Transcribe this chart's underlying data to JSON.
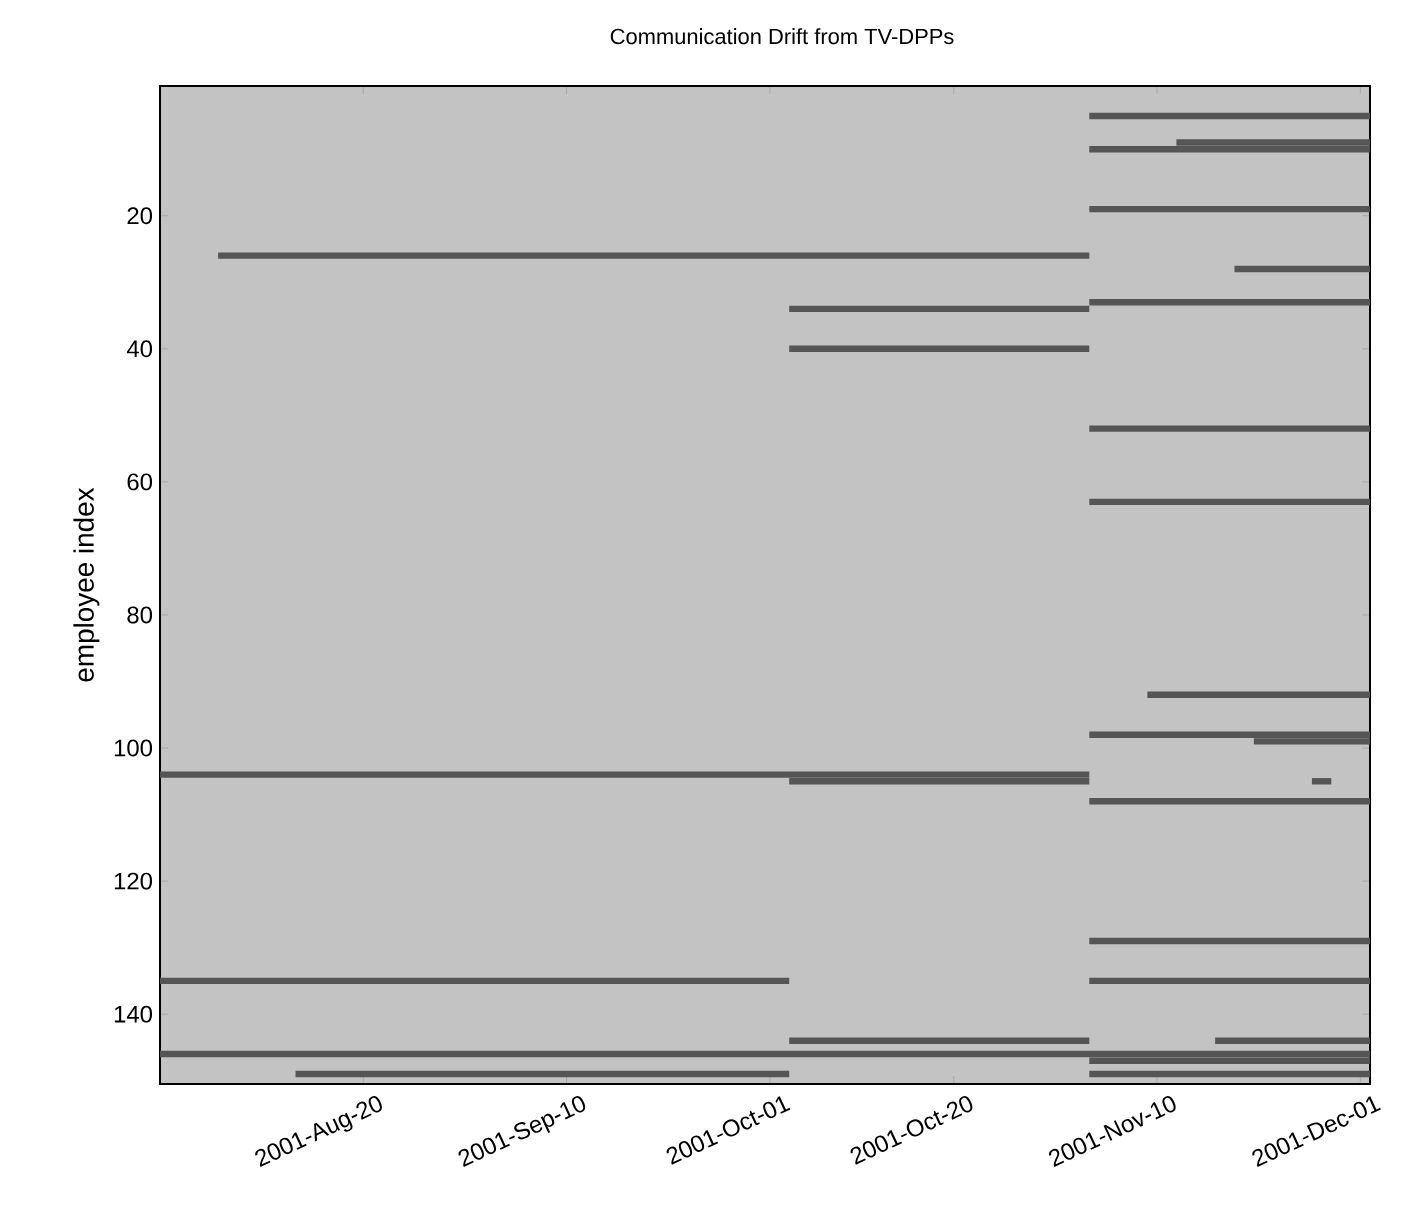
{
  "chart_data": {
    "type": "line",
    "title": "Communication Drift from TV-DPPs",
    "ylabel": "employee index",
    "xlim": [
      "2001-07-30",
      "2001-12-02"
    ],
    "ylim": [
      150.5,
      0.5
    ],
    "marker": "none",
    "xticks": [
      {
        "value": "2001-08-20",
        "label": "2001-Aug-20"
      },
      {
        "value": "2001-09-10",
        "label": "2001-Sep-10"
      },
      {
        "value": "2001-10-01",
        "label": "2001-Oct-01"
      },
      {
        "value": "2001-10-20",
        "label": "2001-Oct-20"
      },
      {
        "value": "2001-11-10",
        "label": "2001-Nov-10"
      },
      {
        "value": "2001-12-01",
        "label": "2001-Dec-01"
      }
    ],
    "yticks": [
      20,
      40,
      60,
      80,
      100,
      120,
      140
    ],
    "series": [
      {
        "color": "#555555",
        "x": [
          "2001-11-03",
          "2001-12-02"
        ],
        "values": [
          5,
          5
        ]
      },
      {
        "color": "#555555",
        "x": [
          "2001-11-12",
          "2001-12-02"
        ],
        "values": [
          9,
          9
        ]
      },
      {
        "color": "#555555",
        "x": [
          "2001-11-03",
          "2001-12-02"
        ],
        "values": [
          10,
          10
        ]
      },
      {
        "color": "#555555",
        "x": [
          "2001-11-03",
          "2001-12-02"
        ],
        "values": [
          19,
          19
        ]
      },
      {
        "color": "#555555",
        "x": [
          "2001-08-05",
          "2001-11-03"
        ],
        "values": [
          26,
          26
        ]
      },
      {
        "color": "#555555",
        "x": [
          "2001-11-18",
          "2001-12-02"
        ],
        "values": [
          28,
          28
        ]
      },
      {
        "color": "#555555",
        "x": [
          "2001-11-03",
          "2001-12-02"
        ],
        "values": [
          33,
          33
        ]
      },
      {
        "color": "#555555",
        "x": [
          "2001-10-03",
          "2001-11-03"
        ],
        "values": [
          34,
          34
        ]
      },
      {
        "color": "#555555",
        "x": [
          "2001-10-03",
          "2001-11-03"
        ],
        "values": [
          40,
          40
        ]
      },
      {
        "color": "#555555",
        "x": [
          "2001-11-03",
          "2001-12-02"
        ],
        "values": [
          52,
          52
        ]
      },
      {
        "color": "#555555",
        "x": [
          "2001-11-03",
          "2001-12-02"
        ],
        "values": [
          63,
          63
        ]
      },
      {
        "color": "#555555",
        "x": [
          "2001-11-09",
          "2001-12-02"
        ],
        "values": [
          92,
          92
        ]
      },
      {
        "color": "#555555",
        "x": [
          "2001-11-03",
          "2001-12-02"
        ],
        "values": [
          98,
          98
        ]
      },
      {
        "color": "#555555",
        "x": [
          "2001-11-20",
          "2001-12-02"
        ],
        "values": [
          99,
          99
        ]
      },
      {
        "color": "#555555",
        "x": [
          "2001-07-30",
          "2001-11-03"
        ],
        "values": [
          104,
          104
        ]
      },
      {
        "color": "#555555",
        "x": [
          "2001-10-03",
          "2001-11-03"
        ],
        "values": [
          105,
          105
        ]
      },
      {
        "color": "#555555",
        "x": [
          "2001-11-26",
          "2001-11-28"
        ],
        "values": [
          105,
          105
        ]
      },
      {
        "color": "#555555",
        "x": [
          "2001-11-03",
          "2001-12-02"
        ],
        "values": [
          108,
          108
        ]
      },
      {
        "color": "#555555",
        "x": [
          "2001-11-03",
          "2001-12-02"
        ],
        "values": [
          129,
          129
        ]
      },
      {
        "color": "#555555",
        "x": [
          "2001-07-30",
          "2001-10-03"
        ],
        "values": [
          135,
          135
        ]
      },
      {
        "color": "#555555",
        "x": [
          "2001-11-03",
          "2001-12-02"
        ],
        "values": [
          135,
          135
        ]
      },
      {
        "color": "#555555",
        "x": [
          "2001-10-03",
          "2001-11-03"
        ],
        "values": [
          144,
          144
        ]
      },
      {
        "color": "#555555",
        "x": [
          "2001-11-16",
          "2001-12-02"
        ],
        "values": [
          144,
          144
        ]
      },
      {
        "color": "#555555",
        "x": [
          "2001-07-30",
          "2001-12-02"
        ],
        "values": [
          146,
          146
        ]
      },
      {
        "color": "#555555",
        "x": [
          "2001-11-03",
          "2001-12-02"
        ],
        "values": [
          147,
          147
        ]
      },
      {
        "color": "#555555",
        "x": [
          "2001-08-13",
          "2001-10-03"
        ],
        "values": [
          149,
          149
        ]
      },
      {
        "color": "#555555",
        "x": [
          "2001-11-03",
          "2001-12-02"
        ],
        "values": [
          149,
          149
        ]
      }
    ]
  }
}
